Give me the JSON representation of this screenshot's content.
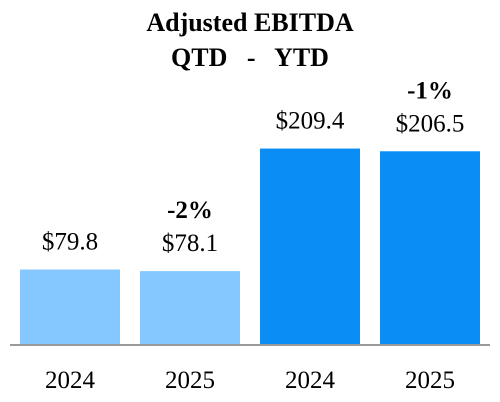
{
  "chart_data": {
    "type": "bar",
    "title": "Adjusted EBITDA",
    "subtitle": "QTD   -   YTD",
    "categories": [
      "2024",
      "2025",
      "2024",
      "2025"
    ],
    "values": [
      79.8,
      78.1,
      209.4,
      206.5
    ],
    "value_labels": [
      "$79.8",
      "$78.1",
      "$209.4",
      "$206.5"
    ],
    "changes": [
      {
        "label": "-2%",
        "bar_index": 1
      },
      {
        "label": "-1%",
        "bar_index": 3
      }
    ],
    "ylim": [
      0,
      240
    ],
    "grid": false,
    "colors": [
      "#85c8ff",
      "#85c8ff",
      "#0a8ef5",
      "#0a8ef5"
    ],
    "axis_color": "#9a9a9a"
  }
}
